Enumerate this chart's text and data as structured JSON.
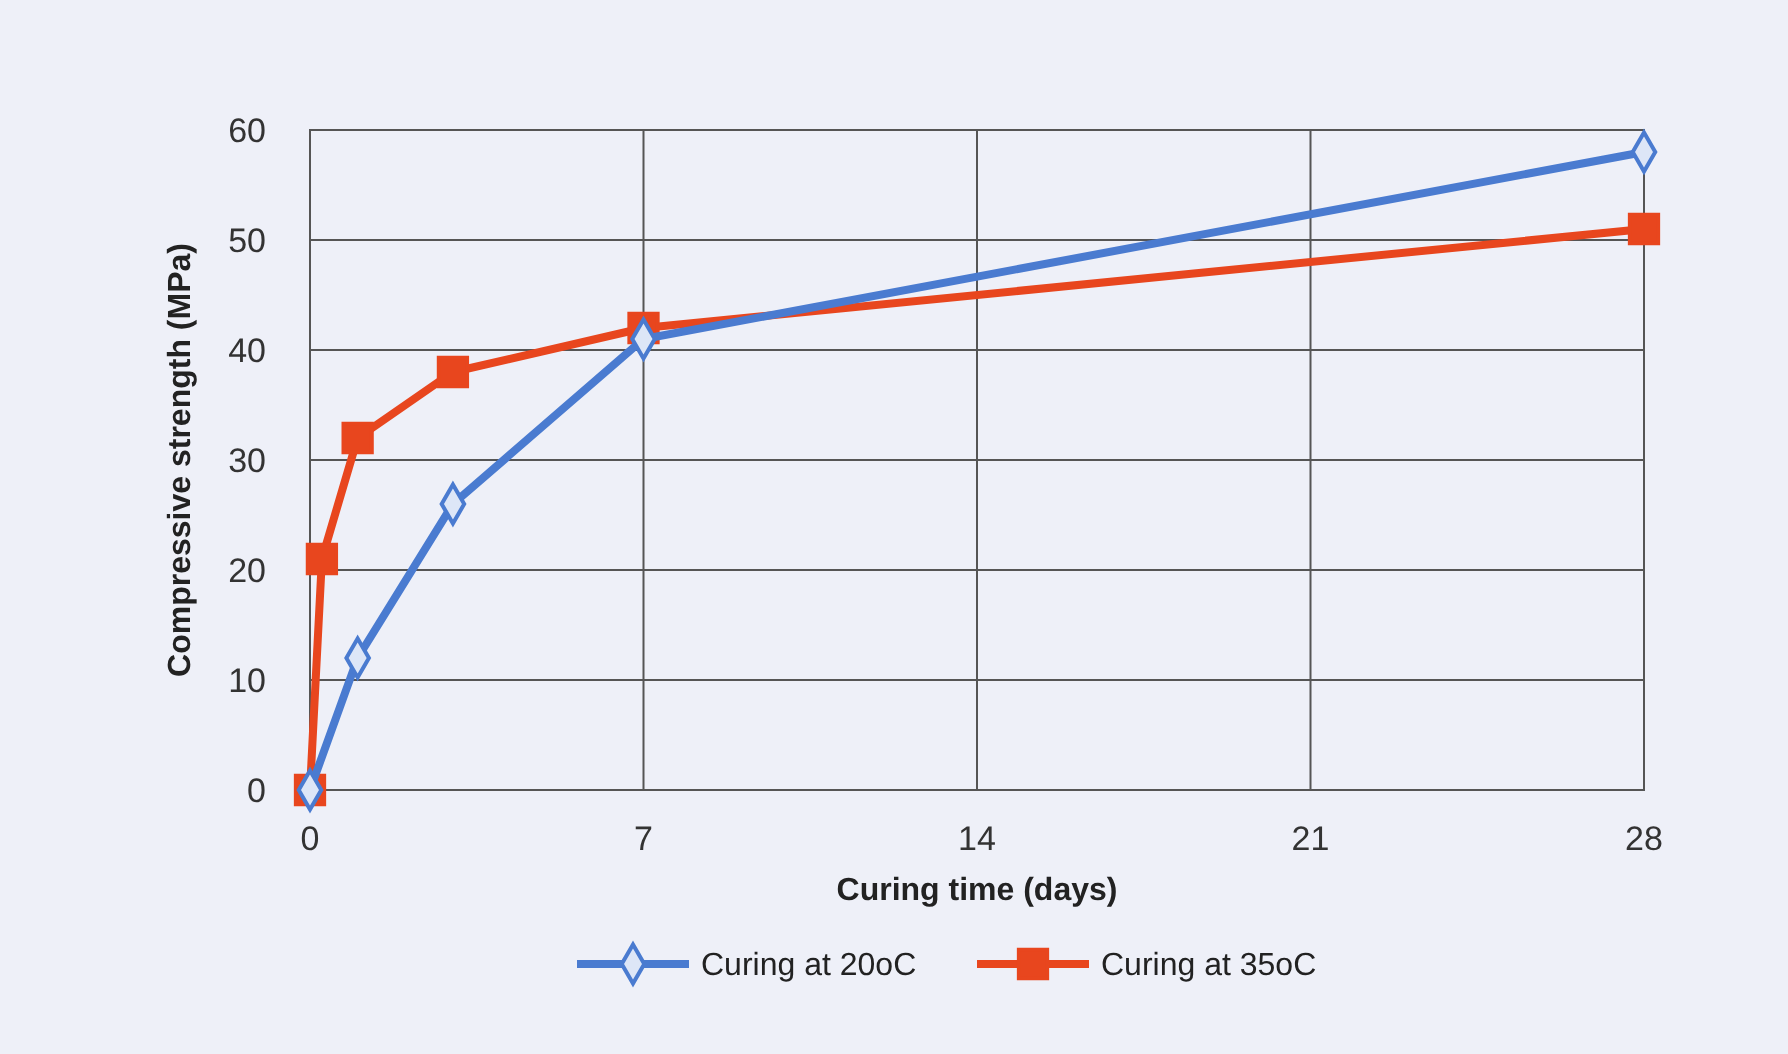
{
  "chart_data": {
    "type": "line",
    "xlabel": "Curing time (days)",
    "ylabel": "Compressive strength (MPa)",
    "xlim": [
      0,
      28
    ],
    "xticks": [
      0,
      7,
      14,
      21,
      28
    ],
    "ylim": [
      0,
      60
    ],
    "yticks": [
      0,
      10,
      20,
      30,
      40,
      50,
      60
    ],
    "grid": true,
    "legend": "bottom",
    "series": [
      {
        "name": "Curing at 20oC",
        "color": "#4a7bd0",
        "marker": "diamond",
        "x": [
          0,
          1,
          3,
          7,
          28
        ],
        "values": [
          0,
          12,
          26,
          41,
          58
        ]
      },
      {
        "name": "Curing at 35oC",
        "color": "#e8461e",
        "marker": "square",
        "x": [
          0,
          0.25,
          1,
          3,
          7,
          28
        ],
        "values": [
          0,
          21,
          32,
          38,
          42,
          51
        ]
      }
    ]
  }
}
